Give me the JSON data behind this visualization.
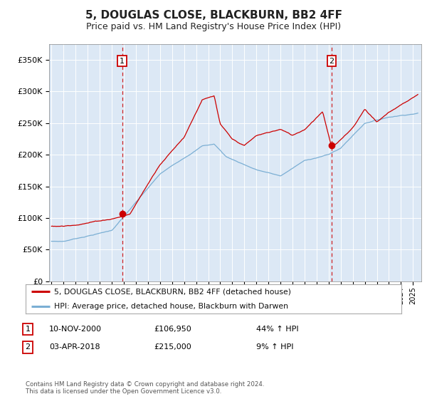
{
  "title": "5, DOUGLAS CLOSE, BLACKBURN, BB2 4FF",
  "subtitle": "Price paid vs. HM Land Registry's House Price Index (HPI)",
  "title_fontsize": 11,
  "subtitle_fontsize": 9,
  "background_color": "#ffffff",
  "plot_background_color": "#dce8f5",
  "grid_color": "#ffffff",
  "red_line_color": "#cc0000",
  "blue_line_color": "#7bafd4",
  "dashed_line_color": "#cc0000",
  "marker_color": "#cc0000",
  "ylabel_values": [
    "£0",
    "£50K",
    "£100K",
    "£150K",
    "£200K",
    "£250K",
    "£300K",
    "£350K"
  ],
  "ylim": [
    0,
    375000
  ],
  "yticks": [
    0,
    50000,
    100000,
    150000,
    200000,
    250000,
    300000,
    350000
  ],
  "xmin": 1994.8,
  "xmax": 2025.7,
  "sale1_x": 2000.86,
  "sale1_y": 106950,
  "sale2_x": 2018.25,
  "sale2_y": 215000,
  "sale1_date": "10-NOV-2000",
  "sale1_price": "£106,950",
  "sale1_hpi": "44% ↑ HPI",
  "sale2_date": "03-APR-2018",
  "sale2_price": "£215,000",
  "sale2_hpi": "9% ↑ HPI",
  "legend_line1": "5, DOUGLAS CLOSE, BLACKBURN, BB2 4FF (detached house)",
  "legend_line2": "HPI: Average price, detached house, Blackburn with Darwen",
  "footnote": "Contains HM Land Registry data © Crown copyright and database right 2024.\nThis data is licensed under the Open Government Licence v3.0."
}
